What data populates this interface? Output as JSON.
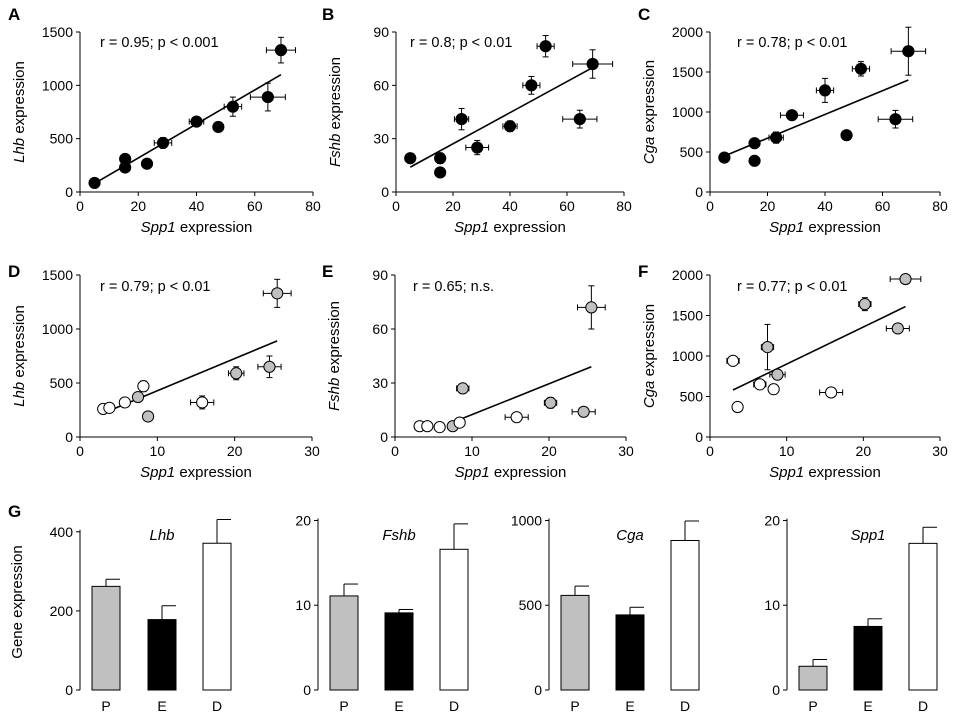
{
  "figure": {
    "panels": [
      "A",
      "B",
      "C",
      "D",
      "E",
      "F"
    ],
    "bar_panel_label": "G",
    "bar_ylabel": "Gene expression"
  },
  "chart_data": [
    {
      "type": "scatter",
      "panel": "A",
      "xlabel_gene": "Spp1",
      "xlabel_suffix": " expression",
      "ylabel_gene": "Lhb",
      "ylabel_suffix": " expression",
      "xlim": [
        0,
        80
      ],
      "ylim": [
        0,
        1500
      ],
      "xticks": [
        0,
        20,
        40,
        60,
        80
      ],
      "yticks": [
        0,
        500,
        1000,
        1500
      ],
      "stat": "r = 0.95; p < 0.001",
      "fit": [
        [
          5,
          80
        ],
        [
          69,
          1100
        ]
      ],
      "points": [
        {
          "x": 5,
          "y": 85,
          "xerr": 0,
          "yerr": 0,
          "fill": "#000000"
        },
        {
          "x": 15.5,
          "y": 310,
          "xerr": 0,
          "yerr": 0,
          "fill": "#000000"
        },
        {
          "x": 15.5,
          "y": 230,
          "xerr": 0,
          "yerr": 0,
          "fill": "#000000"
        },
        {
          "x": 23,
          "y": 265,
          "xerr": 0,
          "yerr": 0,
          "fill": "#000000"
        },
        {
          "x": 28.5,
          "y": 460,
          "xerr": 3,
          "yerr": 50,
          "fill": "#000000"
        },
        {
          "x": 40,
          "y": 660,
          "xerr": 2.5,
          "yerr": 40,
          "fill": "#000000"
        },
        {
          "x": 47.5,
          "y": 610,
          "xerr": 0,
          "yerr": 0,
          "fill": "#000000"
        },
        {
          "x": 52.5,
          "y": 800,
          "xerr": 3,
          "yerr": 90,
          "fill": "#000000"
        },
        {
          "x": 64.5,
          "y": 890,
          "xerr": 6,
          "yerr": 130,
          "fill": "#000000"
        },
        {
          "x": 69,
          "y": 1330,
          "xerr": 5,
          "yerr": 120,
          "fill": "#000000"
        }
      ]
    },
    {
      "type": "scatter",
      "panel": "B",
      "xlabel_gene": "Spp1",
      "xlabel_suffix": " expression",
      "ylabel_gene": "Fshb",
      "ylabel_suffix": " expression",
      "xlim": [
        0,
        80
      ],
      "ylim": [
        0,
        90
      ],
      "xticks": [
        0,
        20,
        40,
        60,
        80
      ],
      "yticks": [
        0,
        30,
        60,
        90
      ],
      "stat": "r = 0.8; p < 0.01",
      "fit": [
        [
          5,
          14
        ],
        [
          69,
          70
        ]
      ],
      "points": [
        {
          "x": 5,
          "y": 19,
          "xerr": 0,
          "yerr": 0,
          "fill": "#000000"
        },
        {
          "x": 15.5,
          "y": 19,
          "xerr": 0,
          "yerr": 3,
          "fill": "#000000"
        },
        {
          "x": 15.5,
          "y": 11,
          "xerr": 0,
          "yerr": 0,
          "fill": "#000000"
        },
        {
          "x": 23,
          "y": 41,
          "xerr": 2.5,
          "yerr": 6,
          "fill": "#000000"
        },
        {
          "x": 28.5,
          "y": 25,
          "xerr": 4,
          "yerr": 4,
          "fill": "#000000"
        },
        {
          "x": 40,
          "y": 37,
          "xerr": 2.5,
          "yerr": 3,
          "fill": "#000000"
        },
        {
          "x": 47.5,
          "y": 60,
          "xerr": 3,
          "yerr": 5,
          "fill": "#000000"
        },
        {
          "x": 52.5,
          "y": 82,
          "xerr": 3,
          "yerr": 6,
          "fill": "#000000"
        },
        {
          "x": 64.5,
          "y": 41,
          "xerr": 6,
          "yerr": 5,
          "fill": "#000000"
        },
        {
          "x": 69,
          "y": 72,
          "xerr": 7,
          "yerr": 8,
          "fill": "#000000"
        }
      ]
    },
    {
      "type": "scatter",
      "panel": "C",
      "xlabel_gene": "Spp1",
      "xlabel_suffix": " expression",
      "ylabel_gene": "Cga",
      "ylabel_suffix": " expression",
      "xlim": [
        0,
        80
      ],
      "ylim": [
        0,
        2000
      ],
      "xticks": [
        0,
        20,
        40,
        60,
        80
      ],
      "yticks": [
        0,
        500,
        1000,
        1500,
        2000
      ],
      "stat": "r = 0.78; p < 0.01",
      "fit": [
        [
          5,
          450
        ],
        [
          69,
          1400
        ]
      ],
      "points": [
        {
          "x": 5,
          "y": 430,
          "xerr": 0,
          "yerr": 0,
          "fill": "#000000"
        },
        {
          "x": 15.5,
          "y": 610,
          "xerr": 0,
          "yerr": 0,
          "fill": "#000000"
        },
        {
          "x": 15.5,
          "y": 390,
          "xerr": 0,
          "yerr": 40,
          "fill": "#000000"
        },
        {
          "x": 23,
          "y": 680,
          "xerr": 2.5,
          "yerr": 70,
          "fill": "#000000"
        },
        {
          "x": 28.5,
          "y": 960,
          "xerr": 4,
          "yerr": 60,
          "fill": "#000000"
        },
        {
          "x": 40,
          "y": 1270,
          "xerr": 3,
          "yerr": 150,
          "fill": "#000000"
        },
        {
          "x": 47.5,
          "y": 710,
          "xerr": 0,
          "yerr": 0,
          "fill": "#000000"
        },
        {
          "x": 52.5,
          "y": 1540,
          "xerr": 3,
          "yerr": 90,
          "fill": "#000000"
        },
        {
          "x": 64.5,
          "y": 910,
          "xerr": 6,
          "yerr": 110,
          "fill": "#000000"
        },
        {
          "x": 69,
          "y": 1760,
          "xerr": 6,
          "yerr": 300,
          "fill": "#000000"
        }
      ]
    },
    {
      "type": "scatter",
      "panel": "D",
      "xlabel_gene": "Spp1",
      "xlabel_suffix": " expression",
      "ylabel_gene": "Lhb",
      "ylabel_suffix": " expression",
      "xlim": [
        0,
        30
      ],
      "ylim": [
        0,
        1500
      ],
      "xticks": [
        0,
        10,
        20,
        30
      ],
      "yticks": [
        0,
        500,
        1000,
        1500
      ],
      "stat": "r = 0.79; p < 0.01",
      "fit": [
        [
          3,
          220
        ],
        [
          25.5,
          890
        ]
      ],
      "points": [
        {
          "x": 3,
          "y": 260,
          "xerr": 0.5,
          "yerr": 0,
          "fill": "#ffffff"
        },
        {
          "x": 3.8,
          "y": 270,
          "xerr": 0.5,
          "yerr": 0,
          "fill": "#ffffff"
        },
        {
          "x": 5.8,
          "y": 320,
          "xerr": 0.5,
          "yerr": 0,
          "fill": "#ffffff"
        },
        {
          "x": 7.5,
          "y": 370,
          "xerr": 0.6,
          "yerr": 0,
          "fill": "#c0c0c0"
        },
        {
          "x": 8.2,
          "y": 470,
          "xerr": 0,
          "yerr": 50,
          "fill": "#ffffff"
        },
        {
          "x": 8.8,
          "y": 190,
          "xerr": 0,
          "yerr": 0,
          "fill": "#c0c0c0"
        },
        {
          "x": 15.8,
          "y": 320,
          "xerr": 1.5,
          "yerr": 60,
          "fill": "#ffffff"
        },
        {
          "x": 20.2,
          "y": 590,
          "xerr": 1,
          "yerr": 60,
          "fill": "#c0c0c0"
        },
        {
          "x": 24.5,
          "y": 650,
          "xerr": 1.5,
          "yerr": 100,
          "fill": "#c0c0c0"
        },
        {
          "x": 25.5,
          "y": 1330,
          "xerr": 1.8,
          "yerr": 130,
          "fill": "#c0c0c0"
        }
      ]
    },
    {
      "type": "scatter",
      "panel": "E",
      "xlabel_gene": "Spp1",
      "xlabel_suffix": " expression",
      "ylabel_gene": "Fshb",
      "ylabel_suffix": " expression",
      "xlim": [
        0,
        30
      ],
      "ylim": [
        0,
        90
      ],
      "xticks": [
        0,
        10,
        20,
        30
      ],
      "yticks": [
        0,
        30,
        60,
        90
      ],
      "stat": "r = 0.65; n.s.",
      "fit": [
        [
          8,
          9
        ],
        [
          25.5,
          39
        ]
      ],
      "points": [
        {
          "x": 3.2,
          "y": 6,
          "xerr": 0.5,
          "yerr": 0,
          "fill": "#ffffff"
        },
        {
          "x": 4.2,
          "y": 6,
          "xerr": 0.5,
          "yerr": 0,
          "fill": "#ffffff"
        },
        {
          "x": 5.8,
          "y": 5.5,
          "xerr": 0.5,
          "yerr": 0,
          "fill": "#ffffff"
        },
        {
          "x": 7.5,
          "y": 6,
          "xerr": 0.6,
          "yerr": 0,
          "fill": "#c0c0c0"
        },
        {
          "x": 8.4,
          "y": 8,
          "xerr": 0.5,
          "yerr": 0,
          "fill": "#ffffff"
        },
        {
          "x": 8.8,
          "y": 27,
          "xerr": 0.8,
          "yerr": 0,
          "fill": "#c0c0c0"
        },
        {
          "x": 15.8,
          "y": 11,
          "xerr": 1.5,
          "yerr": 0,
          "fill": "#ffffff"
        },
        {
          "x": 20.2,
          "y": 19,
          "xerr": 0.8,
          "yerr": 3,
          "fill": "#c0c0c0"
        },
        {
          "x": 24.5,
          "y": 14,
          "xerr": 1.5,
          "yerr": 0,
          "fill": "#c0c0c0"
        },
        {
          "x": 25.5,
          "y": 72,
          "xerr": 1.8,
          "yerr": 12,
          "fill": "#c0c0c0"
        }
      ]
    },
    {
      "type": "scatter",
      "panel": "F",
      "xlabel_gene": "Spp1",
      "xlabel_suffix": " expression",
      "ylabel_gene": "Cga",
      "ylabel_suffix": " expression",
      "xlim": [
        0,
        30
      ],
      "ylim": [
        0,
        2000
      ],
      "xticks": [
        0,
        10,
        20,
        30
      ],
      "yticks": [
        0,
        500,
        1000,
        1500,
        2000
      ],
      "stat": "r = 0.77; p < 0.01",
      "fit": [
        [
          3,
          580
        ],
        [
          25.5,
          1610
        ]
      ],
      "points": [
        {
          "x": 3,
          "y": 940,
          "xerr": 0.8,
          "yerr": 0,
          "fill": "#ffffff"
        },
        {
          "x": 3.6,
          "y": 370,
          "xerr": 0.6,
          "yerr": 0,
          "fill": "#ffffff"
        },
        {
          "x": 6.5,
          "y": 650,
          "xerr": 0.8,
          "yerr": 0,
          "fill": "#ffffff"
        },
        {
          "x": 7.5,
          "y": 1110,
          "xerr": 0.8,
          "yerr": 280,
          "fill": "#c0c0c0"
        },
        {
          "x": 8.3,
          "y": 590,
          "xerr": 0.5,
          "yerr": 60,
          "fill": "#ffffff"
        },
        {
          "x": 8.8,
          "y": 770,
          "xerr": 1,
          "yerr": 0,
          "fill": "#c0c0c0"
        },
        {
          "x": 15.8,
          "y": 550,
          "xerr": 1.5,
          "yerr": 0,
          "fill": "#ffffff"
        },
        {
          "x": 20.2,
          "y": 1640,
          "xerr": 0.8,
          "yerr": 80,
          "fill": "#c0c0c0"
        },
        {
          "x": 24.5,
          "y": 1340,
          "xerr": 1.5,
          "yerr": 0,
          "fill": "#c0c0c0"
        },
        {
          "x": 25.5,
          "y": 1950,
          "xerr": 2,
          "yerr": 0,
          "fill": "#c0c0c0"
        }
      ]
    },
    {
      "type": "bar",
      "panel": "G1",
      "title": "Lhb",
      "categories": [
        "P",
        "E",
        "D"
      ],
      "values": [
        262,
        178,
        371
      ],
      "errors": [
        18,
        35,
        60
      ],
      "fills": [
        "#c0c0c0",
        "#000000",
        "#ffffff"
      ],
      "ylim": [
        0,
        450
      ],
      "yticks": [
        0,
        200,
        400
      ]
    },
    {
      "type": "bar",
      "panel": "G2",
      "title": "Fshb",
      "categories": [
        "P",
        "E",
        "D"
      ],
      "values": [
        11.1,
        9.1,
        16.6
      ],
      "errors": [
        1.4,
        0.4,
        3.0
      ],
      "fills": [
        "#c0c0c0",
        "#000000",
        "#ffffff"
      ],
      "ylim": [
        0,
        21
      ],
      "yticks": [
        0,
        10,
        20
      ]
    },
    {
      "type": "bar",
      "panel": "G3",
      "title": "Cga",
      "categories": [
        "P",
        "E",
        "D"
      ],
      "values": [
        558,
        443,
        882
      ],
      "errors": [
        55,
        45,
        115
      ],
      "fills": [
        "#c0c0c0",
        "#000000",
        "#ffffff"
      ],
      "ylim": [
        0,
        1050
      ],
      "yticks": [
        0,
        500,
        1000
      ]
    },
    {
      "type": "bar",
      "panel": "G4",
      "title": "Spp1",
      "categories": [
        "P",
        "E",
        "D"
      ],
      "values": [
        2.8,
        7.5,
        17.3
      ],
      "errors": [
        0.8,
        0.9,
        1.9
      ],
      "fills": [
        "#c0c0c0",
        "#000000",
        "#ffffff"
      ],
      "ylim": [
        0,
        21
      ],
      "yticks": [
        0,
        10,
        20
      ]
    }
  ]
}
